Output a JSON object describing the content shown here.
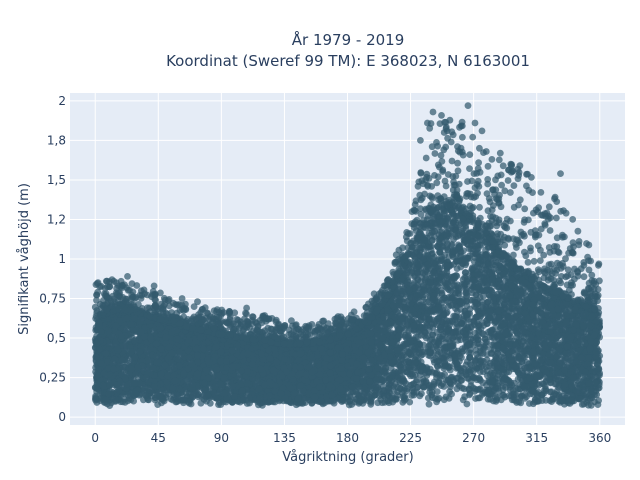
{
  "chart_data": {
    "type": "scatter",
    "title_line1": "År 1979 - 2019",
    "title_line2": "Koordinat (Sweref 99 TM): E 368023, N 6163001",
    "xlabel": "Vågriktning (grader)",
    "ylabel": "Signifikant våghöjd (m)",
    "xlim": [
      -18,
      378
    ],
    "ylim": [
      -0.05,
      2.05
    ],
    "x_ticks": [
      0,
      45,
      90,
      135,
      180,
      225,
      270,
      315,
      360
    ],
    "x_tick_labels": [
      "0",
      "45",
      "90",
      "135",
      "180",
      "225",
      "270",
      "315",
      "360"
    ],
    "y_ticks": [
      0,
      0.25,
      0.5,
      0.75,
      1,
      1.25,
      1.5,
      1.75,
      2
    ],
    "y_tick_labels": [
      "0",
      "0,25",
      "0,5",
      "0,75",
      "1",
      "1,2",
      "1,5",
      "1,8",
      "2"
    ],
    "grid": true,
    "marker_color": "#335a6e",
    "plot_bgcolor": "#e5ecf6",
    "envelope": {
      "direction": [
        0,
        15,
        30,
        45,
        60,
        75,
        90,
        105,
        120,
        135,
        150,
        165,
        180,
        195,
        210,
        225,
        240,
        255,
        270,
        285,
        300,
        315,
        330,
        345,
        360
      ],
      "dense_upper_height": [
        0.62,
        0.68,
        0.66,
        0.62,
        0.58,
        0.55,
        0.52,
        0.5,
        0.48,
        0.46,
        0.46,
        0.48,
        0.52,
        0.6,
        0.78,
        1.05,
        1.3,
        1.35,
        1.25,
        1.1,
        0.95,
        0.85,
        0.78,
        0.72,
        0.66
      ],
      "max_height": [
        0.85,
        0.88,
        0.85,
        0.8,
        0.72,
        0.7,
        0.68,
        0.66,
        0.65,
        0.6,
        0.58,
        0.62,
        0.65,
        0.72,
        0.9,
        1.3,
        1.9,
        1.95,
        1.8,
        1.65,
        1.6,
        1.5,
        1.4,
        1.2,
        0.97
      ]
    },
    "outliers": [
      {
        "x": 2,
        "y": 0.85
      },
      {
        "x": 8,
        "y": 0.86
      },
      {
        "x": 12,
        "y": 0.87
      },
      {
        "x": 23,
        "y": 0.89
      },
      {
        "x": 42,
        "y": 0.83
      },
      {
        "x": 62,
        "y": 0.75
      },
      {
        "x": 73,
        "y": 0.73
      },
      {
        "x": 87,
        "y": 0.68
      },
      {
        "x": 108,
        "y": 0.69
      },
      {
        "x": 140,
        "y": 0.61
      },
      {
        "x": 171,
        "y": 0.62
      },
      {
        "x": 199,
        "y": 0.78
      },
      {
        "x": 226,
        "y": 1.3
      },
      {
        "x": 232,
        "y": 1.75
      },
      {
        "x": 237,
        "y": 1.86
      },
      {
        "x": 241,
        "y": 1.93
      },
      {
        "x": 249,
        "y": 1.8
      },
      {
        "x": 254,
        "y": 1.74
      },
      {
        "x": 262,
        "y": 1.77
      },
      {
        "x": 266,
        "y": 1.97
      },
      {
        "x": 271,
        "y": 1.86
      },
      {
        "x": 276,
        "y": 1.81
      },
      {
        "x": 279,
        "y": 1.68
      },
      {
        "x": 283,
        "y": 1.63
      },
      {
        "x": 289,
        "y": 1.67
      },
      {
        "x": 297,
        "y": 1.59
      },
      {
        "x": 303,
        "y": 1.59
      },
      {
        "x": 312,
        "y": 1.42
      },
      {
        "x": 324,
        "y": 1.33
      },
      {
        "x": 332,
        "y": 1.54
      },
      {
        "x": 336,
        "y": 1.29
      },
      {
        "x": 345,
        "y": 1.09
      },
      {
        "x": 352,
        "y": 0.99
      },
      {
        "x": 359,
        "y": 0.96
      }
    ]
  }
}
